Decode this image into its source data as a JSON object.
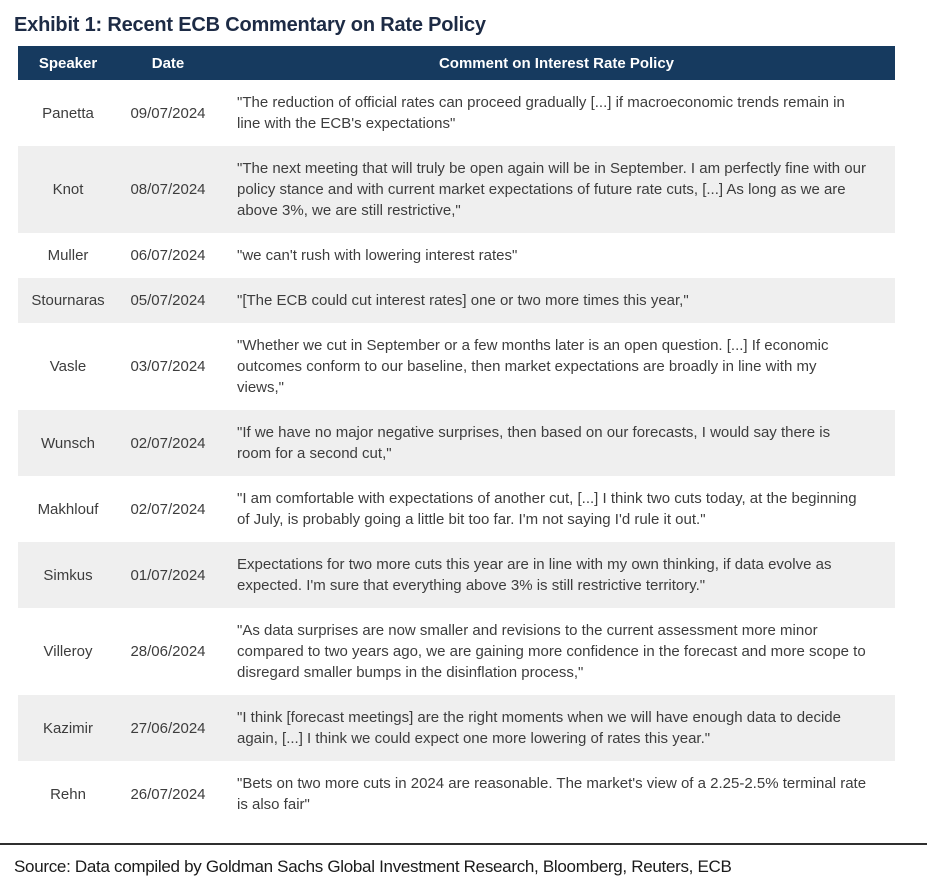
{
  "title": "Exhibit 1: Recent ECB Commentary on Rate Policy",
  "colors": {
    "header_bg": "#163a5f",
    "header_text": "#ffffff",
    "title_color": "#1d2b45",
    "stripe": "#efefef",
    "body_text": "#3d3d3d",
    "rule": "#2f2f2f",
    "source_text": "#1a1a1a"
  },
  "table": {
    "columns": [
      "Speaker",
      "Date",
      "Comment on Interest Rate Policy"
    ],
    "rows": [
      {
        "speaker": "Panetta",
        "date": "09/07/2024",
        "comment": "\"The reduction of official rates can proceed gradually [...] if macroeconomic trends remain in line with the ECB's expectations\""
      },
      {
        "speaker": "Knot",
        "date": "08/07/2024",
        "comment": "\"The next meeting that will truly be open again will be in September. I am perfectly fine with our policy stance and with current market expectations of future rate cuts, [...] As long as we are above 3%, we are still restrictive,\""
      },
      {
        "speaker": "Muller",
        "date": "06/07/2024",
        "comment": "\"we can't rush with lowering interest rates\""
      },
      {
        "speaker": "Stournaras",
        "date": "05/07/2024",
        "comment": "\"[The ECB could cut interest rates] one or two more times this year,\""
      },
      {
        "speaker": "Vasle",
        "date": "03/07/2024",
        "comment": "\"Whether we cut in September or a few months later is an open question. [...] If economic outcomes conform to our baseline, then market expectations are broadly in line with my views,\""
      },
      {
        "speaker": "Wunsch",
        "date": "02/07/2024",
        "comment": "\"If we have no major negative surprises, then based on our forecasts, I would say there is room for a second cut,\""
      },
      {
        "speaker": "Makhlouf",
        "date": "02/07/2024",
        "comment": "\"I am comfortable with expectations of another cut, [...] I think two cuts today, at the beginning of July, is probably going a little bit too far. I'm not saying I'd rule it out.\""
      },
      {
        "speaker": "Simkus",
        "date": "01/07/2024",
        "comment": "Expectations for two more cuts this year are in line with my own thinking, if data evolve as expected. I'm sure that everything above 3% is still restrictive territory.\""
      },
      {
        "speaker": "Villeroy",
        "date": "28/06/2024",
        "comment": "\"As data surprises are now smaller and revisions to the current assessment more minor compared to two years ago, we are gaining more confidence in the forecast and more scope to disregard smaller bumps in the disinflation process,\""
      },
      {
        "speaker": "Kazimir",
        "date": "27/06/2024",
        "comment": "\"I think [forecast meetings] are the right moments when we will have enough data to decide again, [...] I think we could expect one more lowering of rates this year.\""
      },
      {
        "speaker": "Rehn",
        "date": "26/07/2024",
        "comment": "\"Bets on two more cuts in 2024 are reasonable. The market's view of a 2.25-2.5% terminal rate is also fair\""
      }
    ]
  },
  "source": "Source: Data compiled by Goldman Sachs Global Investment Research, Bloomberg, Reuters, ECB"
}
